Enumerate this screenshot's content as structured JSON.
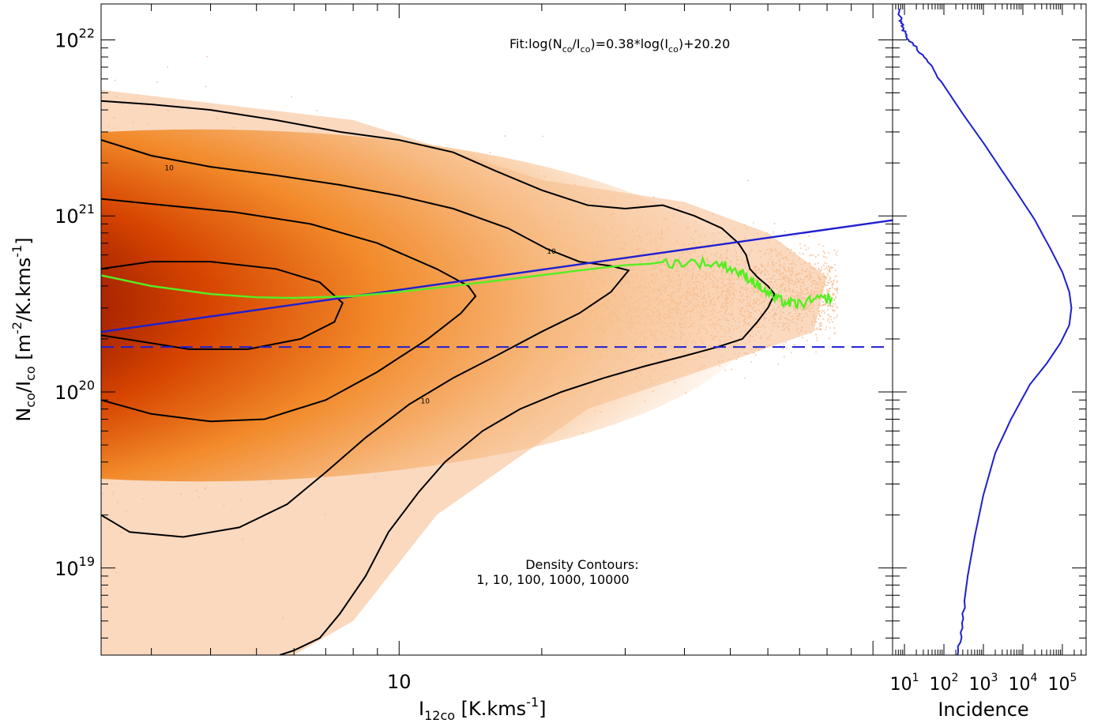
{
  "chart_data": [
    {
      "type": "scatter",
      "title": "",
      "xscale": "log",
      "yscale": "log",
      "xlim": [
        2.35,
        110
      ],
      "ylim": [
        3.2e+18,
        1.6e+22
      ],
      "xlabel": {
        "main": "I",
        "sub": "12co",
        "rest": " [K.kms",
        "sup": "-1",
        "end": "]"
      },
      "ylabel": {
        "a": "N",
        "a_sub": "co",
        "b": "/I",
        "b_sub": "co",
        "c": " [m",
        "c_sup": "-2",
        "d": "/K.kms",
        "d_sup": "-1",
        "e": "]"
      },
      "x_tick_labels": [
        {
          "value": 10,
          "text": "10"
        }
      ],
      "y_tick_labels": [
        {
          "value": 1e+19,
          "base": "10",
          "exp": "19"
        },
        {
          "value": 1e+20,
          "base": "10",
          "exp": "20"
        },
        {
          "value": 1e+21,
          "base": "10",
          "exp": "21"
        },
        {
          "value": 1e+22,
          "base": "10",
          "exp": "22"
        }
      ],
      "fit_annotation": {
        "p1": "Fit:log(N",
        "s1": "co",
        "p2": "/I",
        "s2": "co",
        "p3": ")=0.38*log(I",
        "s3": "co",
        "p4": ")+20.20"
      },
      "contour_annotation": {
        "line1": "Density Contours:",
        "line2": "1, 10, 100, 1000, 10000"
      },
      "contour_levels": [
        1,
        10,
        100,
        1000,
        10000
      ],
      "contour_label_text": "10",
      "contour_labels": [
        {
          "x": 3.2,
          "y": 1.82e+21
        },
        {
          "x": 20.5,
          "y": 6.1e+20
        },
        {
          "x": 11.1,
          "y": 8.6e+19
        }
      ],
      "fit_line": {
        "slope": 0.38,
        "intercept": 20.2,
        "color": "#1f1fd0"
      },
      "reference_line": {
        "y": 1.8e+20,
        "style": "dashed",
        "color": "#1f1fd0"
      },
      "running_median": {
        "color": "#55ee22",
        "points": [
          [
            2.35,
            4.6e+20
          ],
          [
            3.0,
            4e+20
          ],
          [
            4.0,
            3.6e+20
          ],
          [
            5.0,
            3.45e+20
          ],
          [
            6.0,
            3.42e+20
          ],
          [
            8.0,
            3.5e+20
          ],
          [
            10.0,
            3.7e+20
          ],
          [
            13.0,
            4e+20
          ],
          [
            18.0,
            4.45e+20
          ],
          [
            24.0,
            4.9e+20
          ],
          [
            30.0,
            5.25e+20
          ],
          [
            36.0,
            5.4e+20
          ],
          [
            42.0,
            5.45e+20
          ],
          [
            48.0,
            5.3e+20
          ],
          [
            52.0,
            4.8e+20
          ],
          [
            55.0,
            4.4e+20
          ],
          [
            58.0,
            3.9e+20
          ],
          [
            62.0,
            3.4e+20
          ],
          [
            66.0,
            3.2e+20
          ],
          [
            70.0,
            3.15e+20
          ],
          [
            75.0,
            3.3e+20
          ],
          [
            82.0,
            3.45e+20
          ]
        ]
      },
      "contours": [
        {
          "level": 1,
          "points": [
            [
              2.35,
              4.5e+21
            ],
            [
              3.0,
              4.3e+21
            ],
            [
              4.0,
              4e+21
            ],
            [
              5.5,
              3.5e+21
            ],
            [
              7.5,
              3e+21
            ],
            [
              10.0,
              2.7e+21
            ],
            [
              13.0,
              2.3e+21
            ],
            [
              16.0,
              1.8e+21
            ],
            [
              20.0,
              1.4e+21
            ],
            [
              25.0,
              1.15e+21
            ],
            [
              30.0,
              1.1e+21
            ],
            [
              36.0,
              1.15e+21
            ],
            [
              42.0,
              1e+21
            ],
            [
              48.0,
              8.5e+20
            ],
            [
              52.0,
              7e+20
            ],
            [
              54.0,
              6e+20
            ],
            [
              55.0,
              5e+20
            ],
            [
              57.0,
              4.5e+20
            ],
            [
              60.0,
              4e+20
            ],
            [
              62.0,
              3.6e+20
            ],
            [
              60.0,
              3e+20
            ],
            [
              57.0,
              2.5e+20
            ],
            [
              53.0,
              2e+20
            ],
            [
              47.0,
              1.8e+20
            ],
            [
              40.0,
              1.6e+20
            ],
            [
              33.0,
              1.4e+20
            ],
            [
              27.0,
              1.2e+20
            ],
            [
              22.0,
              1e+20
            ],
            [
              18.0,
              8e+19
            ],
            [
              15.0,
              6e+19
            ],
            [
              12.5,
              4e+19
            ],
            [
              11.0,
              2.7e+19
            ],
            [
              9.5,
              1.6e+19
            ],
            [
              8.5,
              9e+18
            ],
            [
              7.5,
              5.5e+18
            ],
            [
              6.8,
              4e+18
            ],
            [
              6.0,
              3.4e+18
            ],
            [
              5.6,
              3.2e+18
            ]
          ]
        },
        {
          "level": 10,
          "points": [
            [
              2.35,
              2.7e+21
            ],
            [
              3.0,
              2.2e+21
            ],
            [
              4.0,
              1.9e+21
            ],
            [
              5.5,
              1.7e+21
            ],
            [
              7.5,
              1.5e+21
            ],
            [
              10.0,
              1.3e+21
            ],
            [
              13.0,
              1.1e+21
            ],
            [
              17.0,
              8.5e+20
            ],
            [
              20.5,
              6.5e+20
            ],
            [
              24.0,
              5.5e+20
            ],
            [
              28.0,
              5.2e+20
            ],
            [
              30.5,
              4.9e+20
            ],
            [
              28.0,
              3.7e+20
            ],
            [
              24.0,
              2.8e+20
            ],
            [
              20.0,
              2.2e+20
            ],
            [
              16.0,
              1.6e+20
            ],
            [
              13.0,
              1.2e+20
            ],
            [
              10.5,
              8.5e+19
            ],
            [
              8.5,
              5.5e+19
            ],
            [
              7.0,
              3.5e+19
            ],
            [
              5.8,
              2.3e+19
            ],
            [
              4.6,
              1.7e+19
            ],
            [
              3.5,
              1.5e+19
            ],
            [
              2.7,
              1.6e+19
            ],
            [
              2.35,
              2e+19
            ]
          ]
        },
        {
          "level": 100,
          "points": [
            [
              2.35,
              1.25e+21
            ],
            [
              3.2,
              1.15e+21
            ],
            [
              4.5,
              1.05e+21
            ],
            [
              6.5,
              9e+20
            ],
            [
              9.0,
              7e+20
            ],
            [
              12.0,
              5e+20
            ],
            [
              14.0,
              4e+20
            ],
            [
              14.5,
              3.5e+20
            ],
            [
              13.5,
              2.8e+20
            ],
            [
              11.5,
              2e+20
            ],
            [
              9.0,
              1.3e+20
            ],
            [
              7.0,
              9e+19
            ],
            [
              5.2,
              7e+19
            ],
            [
              4.0,
              6.8e+19
            ],
            [
              3.0,
              7.5e+19
            ],
            [
              2.35,
              9e+19
            ]
          ]
        },
        {
          "level": 1000,
          "points": [
            [
              2.35,
              5e+20
            ],
            [
              3.0,
              5.5e+20
            ],
            [
              4.0,
              5.5e+20
            ],
            [
              5.5,
              5e+20
            ],
            [
              6.8,
              4.2e+20
            ],
            [
              7.6,
              3.2e+20
            ],
            [
              7.3,
              2.5e+20
            ],
            [
              6.2,
              2e+20
            ],
            [
              4.8,
              1.75e+20
            ],
            [
              3.6,
              1.75e+20
            ],
            [
              2.8,
              1.95e+20
            ],
            [
              2.35,
              2.1e+20
            ]
          ]
        }
      ]
    },
    {
      "type": "line",
      "title": "",
      "orientation": "horizontal-histogram",
      "xscale": "log",
      "xlim": [
        5,
        400000.0
      ],
      "xlabel": "Incidence",
      "x_tick_labels": [
        {
          "value": 10,
          "base": "10",
          "exp": "1"
        },
        {
          "value": 100,
          "base": "10",
          "exp": "2"
        },
        {
          "value": 1000,
          "base": "10",
          "exp": "3"
        },
        {
          "value": 10000,
          "base": "10",
          "exp": "4"
        },
        {
          "value": 100000,
          "base": "10",
          "exp": "5"
        }
      ],
      "color": "#1f1fd0",
      "points": [
        [
          7.0,
          1.5e+22
        ],
        [
          8.0,
          1.3e+22
        ],
        [
          9.0,
          1.2e+22
        ],
        [
          10.0,
          1.1e+22
        ],
        [
          13.0,
          1e+22
        ],
        [
          20.0,
          9e+21
        ],
        [
          40.0,
          7.5e+21
        ],
        [
          100.0,
          5.5e+21
        ],
        [
          300.0,
          3.8e+21
        ],
        [
          1000.0,
          2.6e+21
        ],
        [
          3000.0,
          1.8e+21
        ],
        [
          8000.0,
          1.3e+21
        ],
        [
          20000.0,
          9.5e+20
        ],
        [
          50000.0,
          6.5e+20
        ],
        [
          100000.0,
          4.8e+20
        ],
        [
          150000.0,
          3.7e+20
        ],
        [
          170000.0,
          3e+20
        ],
        [
          150000.0,
          2.4e+20
        ],
        [
          90000.0,
          1.9e+20
        ],
        [
          40000.0,
          1.45e+20
        ],
        [
          15000.0,
          1.1e+20
        ],
        [
          5000.0,
          7e+19
        ],
        [
          2000.0,
          4.5e+19
        ],
        [
          1000.0,
          2.6e+19
        ],
        [
          600.0,
          1.5e+19
        ],
        [
          400.0,
          9e+18
        ],
        [
          300.0,
          5.5e+18
        ],
        [
          250.0,
          3.8e+18
        ],
        [
          220.0,
          3.2e+18
        ]
      ]
    }
  ],
  "colors": {
    "axis": "#000000",
    "scatter_light": "#f6b98a",
    "fit": "#1f1fd0",
    "median": "#55ee22",
    "contour": "#000000"
  }
}
